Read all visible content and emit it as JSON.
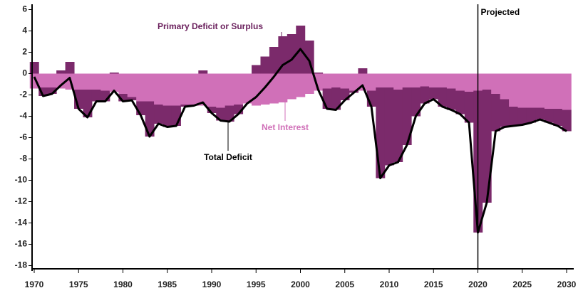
{
  "chart_data": {
    "type": "combo",
    "x": [
      1970,
      1971,
      1972,
      1973,
      1974,
      1975,
      1976,
      1977,
      1978,
      1979,
      1980,
      1981,
      1982,
      1983,
      1984,
      1985,
      1986,
      1987,
      1988,
      1989,
      1990,
      1991,
      1992,
      1993,
      1994,
      1995,
      1996,
      1997,
      1998,
      1999,
      2000,
      2001,
      2002,
      2003,
      2004,
      2005,
      2006,
      2007,
      2008,
      2009,
      2010,
      2011,
      2012,
      2013,
      2014,
      2015,
      2016,
      2017,
      2018,
      2019,
      2020,
      2021,
      2022,
      2023,
      2024,
      2025,
      2026,
      2027,
      2028,
      2029,
      2030
    ],
    "series": [
      {
        "name": "Primary Deficit or Surplus",
        "color": "#7b2a6b",
        "values": [
          1.1,
          -0.8,
          -0.6,
          0.3,
          1.1,
          -1.8,
          -2.6,
          -1.1,
          -1.0,
          0.1,
          -0.7,
          -0.3,
          -1.3,
          -3.3,
          -1.8,
          -2.0,
          -1.9,
          -0.2,
          -0.1,
          0.3,
          -0.6,
          -1.2,
          -1.5,
          -0.9,
          0.0,
          0.8,
          1.6,
          2.5,
          3.5,
          3.7,
          4.5,
          3.1,
          0.1,
          -1.9,
          -2.1,
          -1.1,
          -0.2,
          0.5,
          -1.5,
          -8.5,
          -7.3,
          -6.8,
          -5.4,
          -2.7,
          -1.6,
          -1.1,
          -1.8,
          -2.0,
          -2.2,
          -2.9,
          -13.3,
          -10.6,
          -3.5,
          -2.6,
          -1.8,
          -1.6,
          -1.4,
          -1.1,
          -1.3,
          -1.6,
          -2.0
        ]
      },
      {
        "name": "Net Interest",
        "color": "#d070b8",
        "values": [
          -1.4,
          -1.3,
          -1.3,
          -1.4,
          -1.5,
          -1.5,
          -1.5,
          -1.5,
          -1.6,
          -1.7,
          -1.9,
          -2.2,
          -2.6,
          -2.6,
          -2.9,
          -3.0,
          -3.0,
          -2.9,
          -2.9,
          -3.0,
          -3.1,
          -3.2,
          -3.0,
          -2.9,
          -2.8,
          -3.0,
          -2.9,
          -2.8,
          -2.7,
          -2.4,
          -2.2,
          -1.9,
          -1.6,
          -1.4,
          -1.3,
          -1.4,
          -1.6,
          -1.6,
          -1.6,
          -1.3,
          -1.3,
          -1.5,
          -1.3,
          -1.3,
          -1.2,
          -1.3,
          -1.3,
          -1.4,
          -1.6,
          -1.7,
          -1.6,
          -1.5,
          -1.9,
          -2.4,
          -3.1,
          -3.2,
          -3.2,
          -3.2,
          -3.3,
          -3.3,
          -3.4
        ]
      },
      {
        "name": "Total Deficit",
        "color": "#000000",
        "values": [
          -0.3,
          -2.1,
          -1.9,
          -1.1,
          -0.4,
          -3.3,
          -4.1,
          -2.6,
          -2.6,
          -1.6,
          -2.6,
          -2.5,
          -3.9,
          -5.9,
          -4.7,
          -5.0,
          -4.9,
          -3.1,
          -3.0,
          -2.7,
          -3.7,
          -4.4,
          -4.5,
          -3.8,
          -2.8,
          -2.2,
          -1.3,
          -0.3,
          0.8,
          1.3,
          2.3,
          1.2,
          -1.5,
          -3.3,
          -3.4,
          -2.5,
          -1.8,
          -1.1,
          -3.1,
          -9.8,
          -8.6,
          -8.3,
          -6.7,
          -4.0,
          -2.8,
          -2.4,
          -3.1,
          -3.4,
          -3.8,
          -4.6,
          -14.9,
          -12.1,
          -5.4,
          -5.0,
          -4.9,
          -4.8,
          -4.6,
          -4.3,
          -4.6,
          -4.9,
          -5.4
        ]
      }
    ],
    "xlim": [
      1970,
      2030
    ],
    "xticks": [
      1970,
      1975,
      1980,
      1985,
      1990,
      1995,
      2000,
      2005,
      2010,
      2015,
      2020,
      2025,
      2030
    ],
    "ylim": [
      -18.5,
      6.5
    ],
    "yticks": [
      6,
      4,
      2,
      0,
      -2,
      -4,
      -6,
      -8,
      -10,
      -12,
      -14,
      -16,
      -18
    ],
    "annotations": [
      {
        "text": "Projected",
        "x": 2020
      }
    ]
  }
}
